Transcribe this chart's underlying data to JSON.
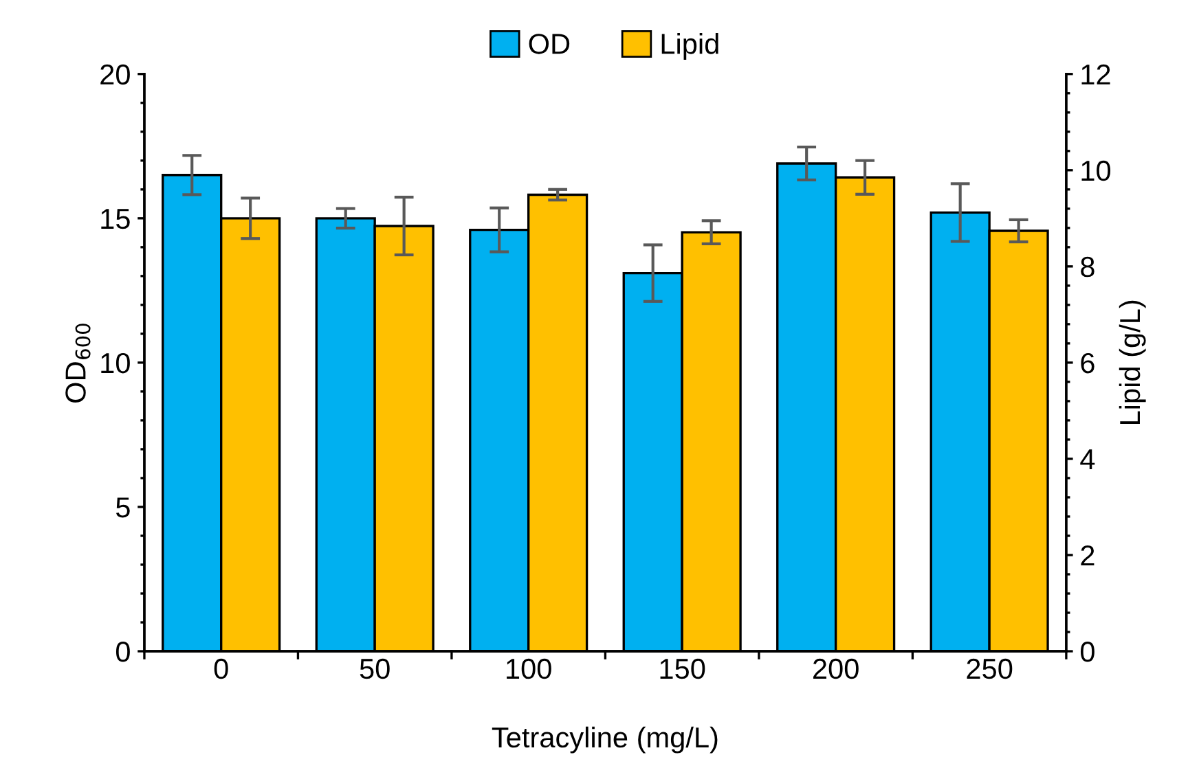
{
  "chart_data": {
    "type": "bar",
    "xlabel": "Tetracyline (mg/L)",
    "ylabel": "OD$_{600}$",
    "y2label": "Lipid (g/L)",
    "categories": [
      "0",
      "50",
      "100",
      "150",
      "200",
      "250"
    ],
    "series": [
      {
        "name": "OD",
        "color": "#00b0f0",
        "values": [
          16.5,
          15.0,
          14.6,
          13.1,
          16.9,
          15.2
        ],
        "errors": [
          0.68,
          0.34,
          0.76,
          0.98,
          0.57,
          1.0
        ]
      },
      {
        "name": "Lipid",
        "color": "#ffc000",
        "axis": "y2",
        "values": [
          9.0,
          8.84,
          9.49,
          8.71,
          9.85,
          8.74
        ],
        "errors": [
          0.42,
          0.6,
          0.11,
          0.24,
          0.35,
          0.23
        ]
      }
    ],
    "ylim": [
      0,
      20
    ],
    "yticks": [
      0,
      5,
      10,
      15,
      20
    ],
    "y2lim": [
      0,
      12
    ],
    "y2ticks": [
      0,
      2,
      4,
      6,
      8,
      10,
      12
    ],
    "grid": false,
    "legend": "top"
  }
}
